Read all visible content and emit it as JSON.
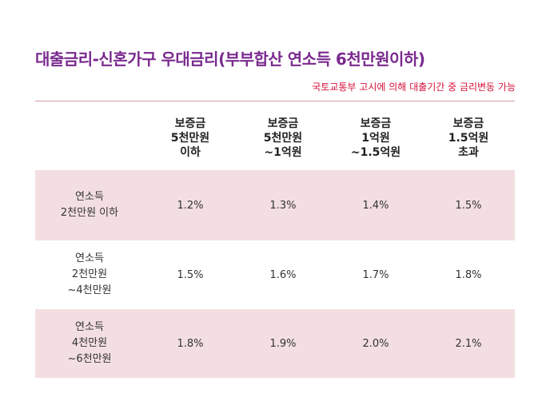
{
  "title": "대출금리-신혼가구 우대금리(부부합산 연소득 6천만원이하)",
  "subtitle": "국토교통부 고시에 의해 대출기간 중 금리변동 가능",
  "table": {
    "columns": [
      {
        "lines": [
          "보증금",
          "5천만원",
          "이하"
        ]
      },
      {
        "lines": [
          "보증금",
          "5천만원",
          "~1억원"
        ]
      },
      {
        "lines": [
          "보증금",
          "1억원",
          "~1.5억원"
        ]
      },
      {
        "lines": [
          "보증금",
          "1.5억원",
          "초과"
        ]
      }
    ],
    "rows": [
      {
        "header": [
          "연소득",
          "2천만원 이하"
        ],
        "values": [
          "1.2%",
          "1.3%",
          "1.4%",
          "1.5%"
        ]
      },
      {
        "header": [
          "연소득",
          "2천만원",
          "~4천만원"
        ],
        "values": [
          "1.5%",
          "1.6%",
          "1.7%",
          "1.8%"
        ]
      },
      {
        "header": [
          "연소득",
          "4천만원",
          "~6천만원"
        ],
        "values": [
          "1.8%",
          "1.9%",
          "2.0%",
          "2.1%"
        ]
      }
    ]
  }
}
